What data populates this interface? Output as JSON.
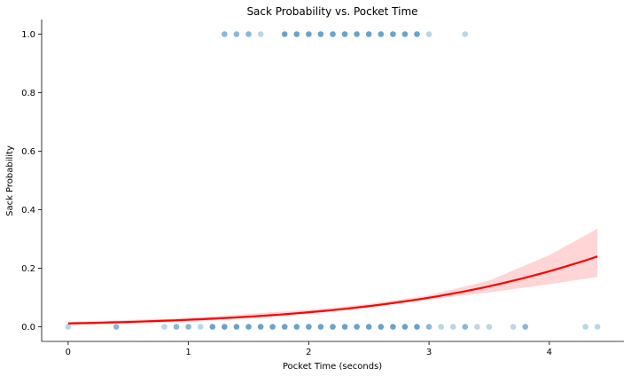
{
  "chart_data": {
    "type": "scatter",
    "title": "Sack Probability vs. Pocket Time",
    "xlabel": "Pocket Time (seconds)",
    "ylabel": "Sack Probability",
    "xlim": [
      -0.22,
      4.62
    ],
    "ylim": [
      -0.05,
      1.05
    ],
    "x_ticks": [
      0,
      1,
      2,
      3,
      4
    ],
    "y_ticks": [
      0.0,
      0.2,
      0.4,
      0.6,
      0.8,
      1.0
    ],
    "x_tick_labels": [
      "0",
      "1",
      "2",
      "3",
      "4"
    ],
    "y_tick_labels": [
      "0.0",
      "0.2",
      "0.4",
      "0.6",
      "0.8",
      "1.0"
    ],
    "grid": false,
    "series": [
      {
        "kind": "points",
        "color": "#1f77b4",
        "points_y1": [
          1.3,
          1.4,
          1.5,
          1.6,
          1.8,
          1.9,
          2.0,
          2.1,
          2.2,
          2.3,
          2.4,
          2.5,
          2.6,
          2.7,
          2.8,
          2.9,
          3.0,
          3.3
        ],
        "points_y1_strength": [
          0.7,
          0.7,
          0.7,
          0.4,
          0.9,
          0.9,
          0.9,
          0.9,
          0.9,
          0.9,
          0.9,
          0.9,
          0.9,
          0.9,
          0.9,
          0.9,
          0.4,
          0.4
        ],
        "points_y0": [
          0.0,
          0.4,
          0.8,
          0.9,
          1.0,
          1.1,
          1.2,
          1.3,
          1.4,
          1.5,
          1.6,
          1.7,
          1.8,
          1.9,
          2.0,
          2.1,
          2.2,
          2.3,
          2.4,
          2.5,
          2.6,
          2.7,
          2.8,
          2.9,
          3.0,
          3.1,
          3.2,
          3.3,
          3.4,
          3.5,
          3.7,
          3.8,
          4.3,
          4.4
        ],
        "points_y0_strength": [
          0.4,
          0.7,
          0.4,
          0.7,
          0.7,
          0.4,
          0.9,
          0.9,
          0.9,
          0.9,
          0.9,
          0.9,
          0.9,
          0.9,
          0.9,
          0.9,
          0.9,
          0.9,
          0.9,
          0.9,
          0.9,
          0.9,
          0.9,
          0.9,
          0.7,
          0.4,
          0.4,
          0.7,
          0.4,
          0.4,
          0.4,
          0.7,
          0.4,
          0.4
        ]
      },
      {
        "kind": "logistic_fit",
        "color": "#ff0000",
        "band_color": "#ffb3b3",
        "intercept": -4.46,
        "slope": 0.752,
        "x_start": 0.0,
        "x_end": 4.4,
        "band_x": [
          0.0,
          1.0,
          2.0,
          2.5,
          3.0,
          3.5,
          4.0,
          4.4
        ],
        "band_lower": [
          0.006,
          0.017,
          0.044,
          0.068,
          0.093,
          0.118,
          0.145,
          0.17
        ],
        "band_upper": [
          0.016,
          0.03,
          0.058,
          0.078,
          0.108,
          0.158,
          0.245,
          0.335
        ]
      }
    ]
  }
}
